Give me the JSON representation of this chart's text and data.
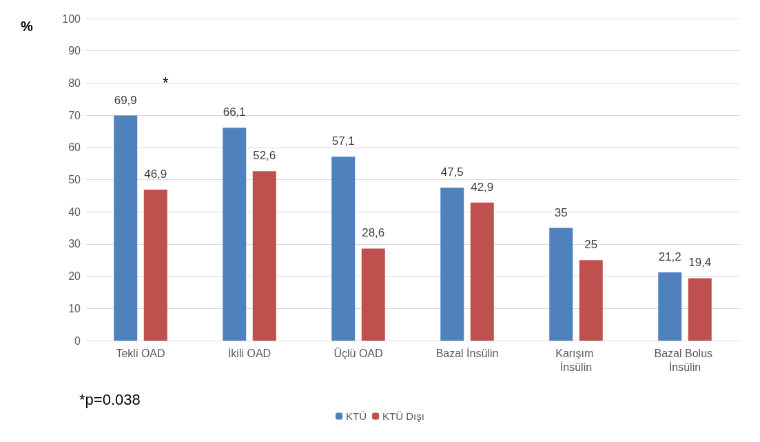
{
  "chart_data": {
    "type": "bar",
    "ylabel": "%",
    "categories": [
      "Tekli OAD",
      "İkili OAD",
      "Üçlü OAD",
      "Bazal İnsülin",
      "Karışım İnsülin",
      "Bazal Bolus İnsülin"
    ],
    "series": [
      {
        "name": "KTÜ",
        "color": "#4f81bd",
        "values": [
          69.9,
          66.1,
          57.1,
          47.5,
          35,
          21.2
        ],
        "value_labels": [
          "69,9",
          "66,1",
          "57,1",
          "47,5",
          "35",
          "21,2"
        ]
      },
      {
        "name": "KTÜ Dışı",
        "color": "#c0504d",
        "values": [
          46.9,
          52.6,
          28.6,
          42.9,
          25,
          19.4
        ],
        "value_labels": [
          "46,9",
          "52,6",
          "28,6",
          "42,9",
          "25",
          "19,4"
        ]
      }
    ],
    "ylim": [
      0,
      100
    ],
    "yticks": [
      0,
      10,
      20,
      30,
      40,
      50,
      60,
      70,
      80,
      90,
      100
    ],
    "grid": "y",
    "legend": "bottom",
    "annotations": [
      "*",
      "*p=0.038"
    ]
  }
}
